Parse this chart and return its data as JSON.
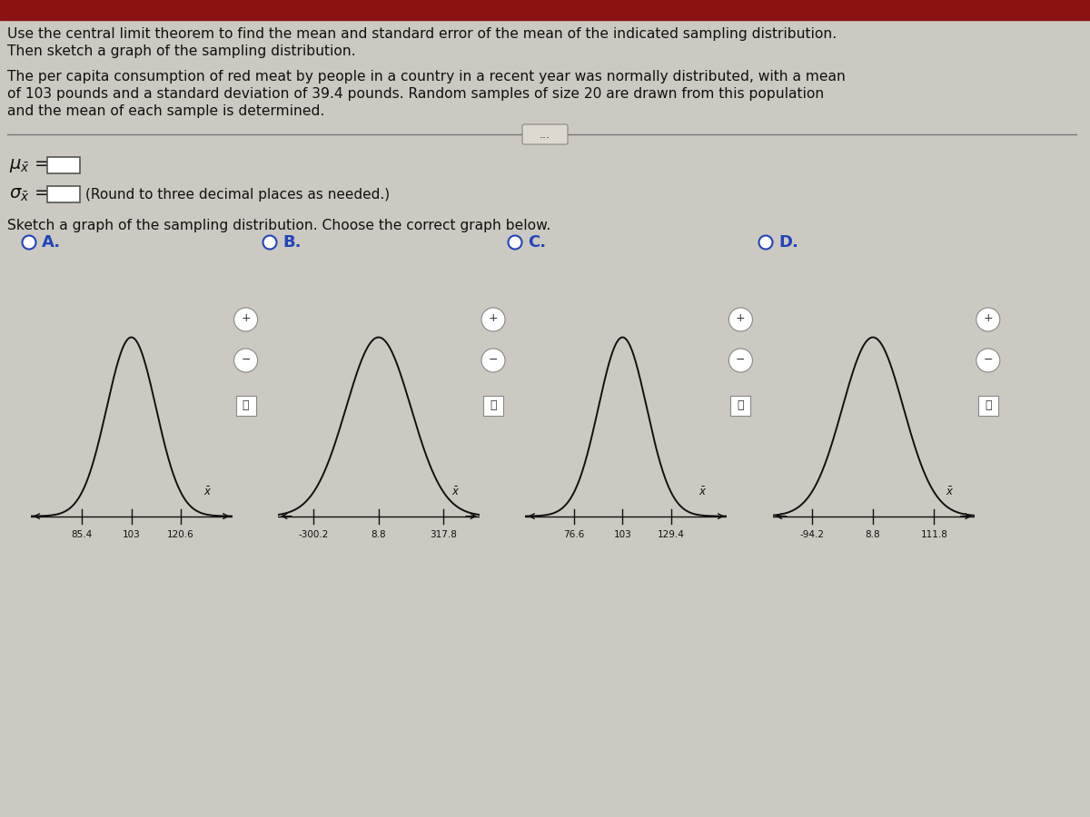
{
  "bg_color": "#cbc9c1",
  "red_bar_color": "#8b1212",
  "title_line1": "Use the central limit theorem to find the mean and standard error of the mean of the indicated sampling distribution.",
  "title_line2": "Then sketch a graph of the sampling distribution.",
  "body_line1": "The per capita consumption of red meat by people in a country in a recent year was normally distributed, with a mean",
  "body_line2": "of 103 pounds and a standard deviation of 39.4 pounds. Random samples of size 20 are drawn from this population",
  "body_line3": "and the mean of each sample is determined.",
  "round_text": "(Round to three decimal places as needed.)",
  "sketch_text": "Sketch a graph of the sampling distribution. Choose the correct graph below.",
  "option_labels": [
    "A.",
    "B.",
    "C.",
    "D."
  ],
  "radio_color": "#2244bb",
  "text_color": "#111111",
  "curve_color": "#111111",
  "axis_color": "#111111",
  "graphs": [
    {
      "mean": 103.0,
      "sigma": 8.8,
      "x_ticks": [
        85.4,
        103.0,
        120.6
      ],
      "x_tick_labels": [
        "85.4",
        "103",
        "120.6"
      ],
      "x_min": 67.0,
      "x_max": 139.0
    },
    {
      "mean": 8.8,
      "sigma": 154.5,
      "x_ticks": [
        -300.2,
        8.8,
        317.8
      ],
      "x_tick_labels": [
        "-300.2",
        "8.8",
        "317.8"
      ],
      "x_min": -470.0,
      "x_max": 490.0
    },
    {
      "mean": 103.0,
      "sigma": 13.2,
      "x_ticks": [
        76.6,
        103.0,
        129.4
      ],
      "x_tick_labels": [
        "76.6",
        "103",
        "129.4"
      ],
      "x_min": 50.0,
      "x_max": 160.0
    },
    {
      "mean": 8.8,
      "sigma": 51.5,
      "x_ticks": [
        -94.2,
        8.8,
        111.8
      ],
      "x_tick_labels": [
        "-94.2",
        "8.8",
        "111.8"
      ],
      "x_min": -160.0,
      "x_max": 180.0
    }
  ]
}
